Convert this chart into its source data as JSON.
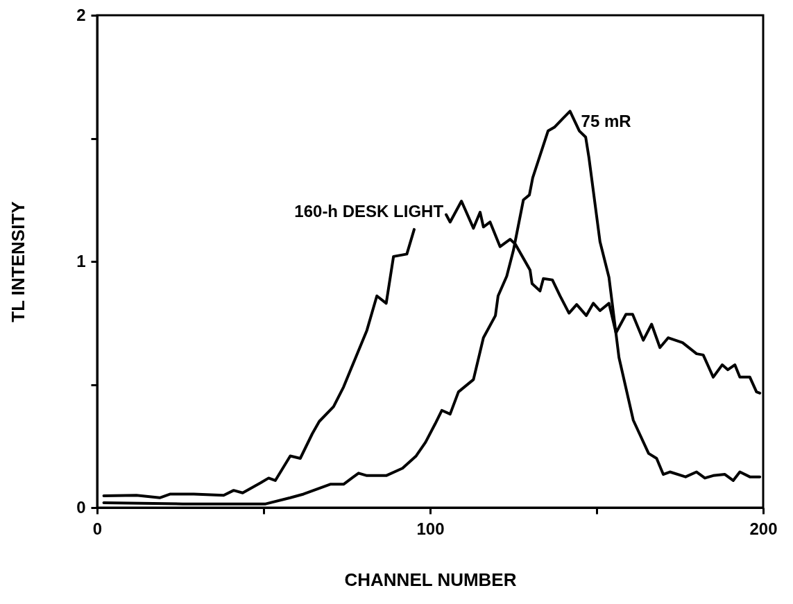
{
  "chart_data": {
    "type": "line",
    "xlabel": "CHANNEL NUMBER",
    "ylabel": "TL INTENSITY",
    "xlim": [
      0,
      200
    ],
    "ylim": [
      0,
      2
    ],
    "xticks": [
      0,
      {
        "value": 50,
        "label": null
      },
      100,
      {
        "value": 150,
        "label": null
      },
      200
    ],
    "yticks": [
      0,
      {
        "value": 0.5,
        "label": null
      },
      1,
      {
        "value": 1.5,
        "label": null
      },
      2
    ],
    "grid": false,
    "marker": "none",
    "line_style": "solid",
    "series": [
      {
        "name": "160-h DESK LIGHT",
        "color": "#000000",
        "x": [
          2,
          11.8,
          18.8,
          22,
          29,
          38,
          41,
          43.7,
          49,
          51.5,
          53.5,
          58,
          61,
          64.6,
          66.7,
          71,
          74,
          81,
          84,
          86.8,
          89,
          93,
          95.2,
          100,
          104.8,
          106,
          109.4,
          113,
          115,
          116,
          118,
          121,
          124,
          125.6,
          130,
          130.6,
          133,
          134,
          136.7,
          139,
          141.7,
          144,
          146.9,
          149,
          151,
          153.7,
          155.8,
          158.8,
          160.8,
          164,
          166.5,
          169,
          171.5,
          175.8,
          180,
          182,
          185,
          187.7,
          189.4,
          191.5,
          193,
          196,
          198,
          199
        ],
        "values": [
          0.048,
          0.05,
          0.04,
          0.055,
          0.055,
          0.05,
          0.07,
          0.06,
          0.1,
          0.12,
          0.11,
          0.21,
          0.2,
          0.3,
          0.35,
          0.41,
          0.49,
          0.72,
          0.86,
          0.83,
          1.02,
          1.03,
          1.13,
          null,
          1.19,
          1.16,
          1.245,
          1.135,
          1.2,
          1.14,
          1.16,
          1.06,
          1.09,
          1.07,
          0.965,
          0.91,
          0.88,
          0.93,
          0.925,
          0.86,
          0.79,
          0.825,
          0.78,
          0.83,
          0.8,
          0.83,
          0.71,
          0.785,
          0.785,
          0.68,
          0.745,
          0.65,
          0.69,
          0.67,
          0.625,
          0.62,
          0.53,
          0.58,
          0.56,
          0.58,
          0.53,
          0.53,
          0.47,
          0.465
        ]
      },
      {
        "name": "75 mR",
        "color": "#000000",
        "x": [
          2,
          25.7,
          50.6,
          58,
          62,
          67,
          70,
          74,
          78.5,
          81,
          86.8,
          91.7,
          95.8,
          98.6,
          101.5,
          103.5,
          106,
          108.5,
          113,
          116,
          119.6,
          120.4,
          123,
          125,
          128,
          129.8,
          130.8,
          135.4,
          137.3,
          139.8,
          142,
          144.8,
          146.7,
          147.7,
          151,
          153.7,
          156.7,
          161,
          165.6,
          168,
          170,
          172,
          176.7,
          180,
          182.5,
          185,
          188.5,
          191,
          193,
          196,
          199
        ],
        "values": [
          0.02,
          0.015,
          0.015,
          0.04,
          0.055,
          0.08,
          0.095,
          0.095,
          0.14,
          0.13,
          0.13,
          0.16,
          0.21,
          0.265,
          0.34,
          0.395,
          0.38,
          0.47,
          0.52,
          0.69,
          0.78,
          0.86,
          0.94,
          1.045,
          1.25,
          1.27,
          1.34,
          1.53,
          1.545,
          1.58,
          1.61,
          1.53,
          1.505,
          1.42,
          1.08,
          0.935,
          0.61,
          0.355,
          0.22,
          0.2,
          0.135,
          0.145,
          0.125,
          0.145,
          0.12,
          0.13,
          0.135,
          0.11,
          0.145,
          0.125,
          0.125
        ]
      }
    ]
  }
}
